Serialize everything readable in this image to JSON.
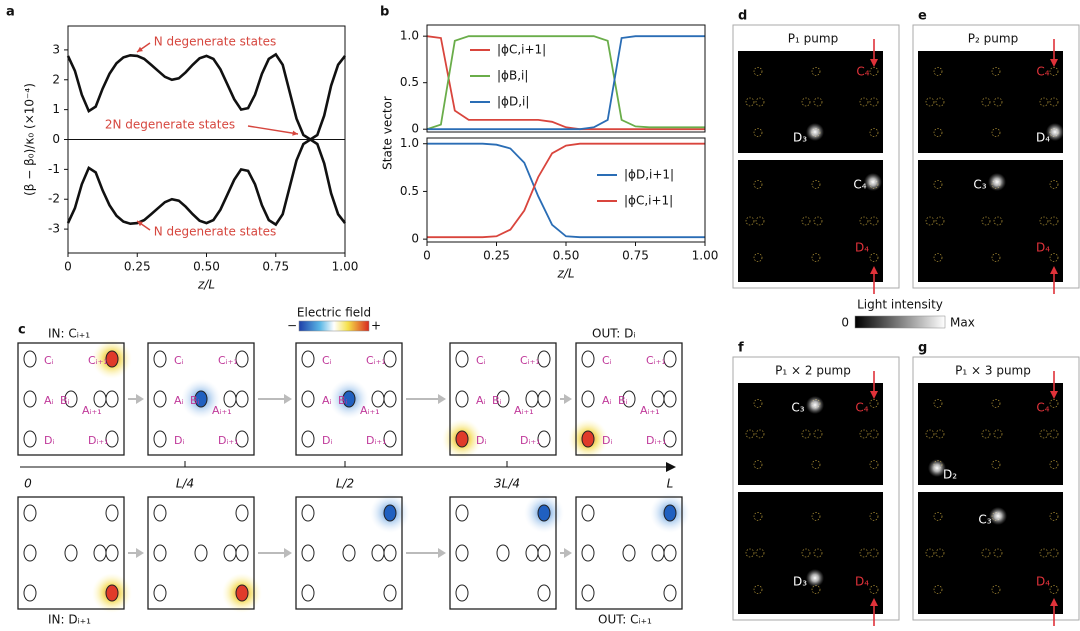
{
  "chart_data": [
    {
      "type": "line",
      "panel": "a",
      "x": [
        0,
        0.025,
        0.05,
        0.075,
        0.1,
        0.125,
        0.15,
        0.175,
        0.2,
        0.225,
        0.25,
        0.275,
        0.3,
        0.325,
        0.35,
        0.375,
        0.4,
        0.425,
        0.45,
        0.475,
        0.5,
        0.525,
        0.55,
        0.575,
        0.6,
        0.625,
        0.65,
        0.675,
        0.7,
        0.725,
        0.75,
        0.775,
        0.8,
        0.825,
        0.85,
        0.875,
        0.9,
        0.925,
        0.95,
        0.975,
        1
      ],
      "series": [
        {
          "color": "#111111",
          "values": [
            2.8,
            2.3,
            1.5,
            0.95,
            1.1,
            1.7,
            2.2,
            2.55,
            2.75,
            2.82,
            2.8,
            2.7,
            2.5,
            2.3,
            2.1,
            2.0,
            2.05,
            2.25,
            2.5,
            2.72,
            2.8,
            2.7,
            2.35,
            1.85,
            1.35,
            1.0,
            1.05,
            1.5,
            2.2,
            2.7,
            2.85,
            2.5,
            1.6,
            0.7,
            0.15,
            0,
            0.15,
            0.8,
            1.8,
            2.5,
            2.8
          ]
        },
        {
          "color": "#111111",
          "values": [
            -2.8,
            -2.3,
            -1.5,
            -0.95,
            -1.1,
            -1.7,
            -2.2,
            -2.55,
            -2.75,
            -2.82,
            -2.8,
            -2.7,
            -2.5,
            -2.3,
            -2.1,
            -2.0,
            -2.05,
            -2.25,
            -2.5,
            -2.72,
            -2.8,
            -2.7,
            -2.35,
            -1.85,
            -1.35,
            -1.0,
            -1.05,
            -1.5,
            -2.2,
            -2.7,
            -2.85,
            -2.5,
            -1.6,
            -0.7,
            -0.15,
            0,
            -0.15,
            -0.8,
            -1.8,
            -2.5,
            -2.8
          ]
        },
        {
          "color": "#111111",
          "values": [
            0,
            0,
            0,
            0,
            0,
            0,
            0,
            0,
            0,
            0,
            0,
            0,
            0,
            0,
            0,
            0,
            0,
            0,
            0,
            0,
            0,
            0,
            0,
            0,
            0,
            0,
            0,
            0,
            0,
            0,
            0,
            0,
            0,
            0,
            0,
            0,
            0,
            0,
            0,
            0,
            0
          ]
        }
      ],
      "xlim": [
        0,
        1
      ],
      "xticks": [
        0,
        0.25,
        {
          "value": 0.5,
          "label": "0.50"
        },
        0.75,
        {
          "value": 1,
          "label": "1.00"
        }
      ],
      "ylim": [
        -3.8,
        3.8
      ],
      "yticks": [
        -3,
        -2,
        -1,
        0,
        1,
        2,
        3
      ],
      "xlabel": "z/L",
      "ylabel": "(β − β₀)/κ₀ (×10⁻⁴)",
      "annotations": [
        "N degenerate states",
        "2N degenerate states",
        "N degenerate states"
      ]
    },
    {
      "type": "line",
      "panel": "b",
      "x": [
        0,
        0.05,
        0.1,
        0.15,
        0.2,
        0.25,
        0.3,
        0.35,
        0.4,
        0.45,
        0.5,
        0.55,
        0.6,
        0.65,
        0.7,
        0.75,
        0.8,
        0.85,
        0.9,
        0.95,
        1
      ],
      "series": [
        {
          "name": "|ϕC,i+1|",
          "color": "#d9453d",
          "values": [
            1,
            0.98,
            0.2,
            0.1,
            0.1,
            0.1,
            0.1,
            0.1,
            0.1,
            0.08,
            0.02,
            0,
            0,
            0,
            0,
            0,
            0,
            0,
            0,
            0,
            0
          ]
        },
        {
          "name": "|ϕB,i|",
          "color": "#6aad4a",
          "values": [
            0,
            0.05,
            0.95,
            1,
            1,
            1,
            1,
            1,
            1,
            1,
            1,
            1,
            1,
            0.95,
            0.1,
            0.03,
            0.02,
            0.02,
            0.02,
            0.02,
            0.02
          ]
        },
        {
          "name": "|ϕD,i|",
          "color": "#2a6db5",
          "values": [
            0,
            0,
            0,
            0,
            0,
            0,
            0,
            0,
            0,
            0,
            0,
            0,
            0.02,
            0.1,
            0.98,
            1,
            1,
            1,
            1,
            1,
            1
          ]
        }
      ],
      "xlim": [
        0,
        1
      ],
      "ylim": [
        -0.03,
        1.12
      ],
      "yticks": [
        0,
        0.5,
        {
          "value": 1,
          "label": "1.0"
        }
      ],
      "ylabel": "State vector",
      "legend": "upper center"
    },
    {
      "type": "line",
      "x": [
        0,
        0.05,
        0.1,
        0.15,
        0.2,
        0.25,
        0.3,
        0.35,
        0.4,
        0.45,
        0.5,
        0.55,
        0.6,
        0.65,
        0.7,
        0.75,
        0.8,
        0.85,
        0.9,
        0.95,
        1
      ],
      "series": [
        {
          "name": "|ϕD,i+1|",
          "color": "#2a6db5",
          "values": [
            1,
            1,
            1,
            1,
            1,
            0.99,
            0.95,
            0.8,
            0.45,
            0.15,
            0.03,
            0.02,
            0.02,
            0.02,
            0.02,
            0.02,
            0.02,
            0.02,
            0.02,
            0.02,
            0.02
          ]
        },
        {
          "name": "|ϕC,i+1|",
          "color": "#d9453d",
          "values": [
            0.02,
            0.02,
            0.02,
            0.02,
            0.02,
            0.03,
            0.1,
            0.3,
            0.65,
            0.9,
            0.98,
            1,
            1,
            1,
            1,
            1,
            1,
            1,
            1,
            1,
            1
          ]
        }
      ],
      "xlim": [
        0,
        1
      ],
      "xticks": [
        0,
        0.25,
        {
          "value": 0.5,
          "label": "0.50"
        },
        0.75,
        {
          "value": 1,
          "label": "1.00"
        }
      ],
      "ylim": [
        -0.03,
        1.06
      ],
      "yticks": [
        0,
        0.5,
        {
          "value": 1,
          "label": "1.0"
        }
      ],
      "xlabel": "z/L",
      "legend": "center right"
    }
  ],
  "panel_c": {
    "letter": "c",
    "in_top": "IN: Cᵢ₊₁",
    "out_top": "OUT: Dᵢ",
    "in_bottom": "IN: Dᵢ₊₁",
    "out_bottom": "OUT: Cᵢ₊₁",
    "axis_labels": [
      "0",
      "L/4",
      "L/2",
      "3L/4",
      "L"
    ],
    "site_labels": [
      "Cᵢ",
      "Cᵢ₊₁",
      "Aᵢ",
      "Bᵢ",
      "Aᵢ₊₁",
      "Dᵢ",
      "Dᵢ₊₁"
    ],
    "colorbar": {
      "title": "Electric field",
      "min": "−",
      "max": "+"
    }
  },
  "panels_dg": [
    {
      "letter": "d",
      "title": "P₁ pump",
      "images": [
        [
          "C₄",
          "D₃"
        ],
        [
          "C₄",
          "D₄"
        ]
      ]
    },
    {
      "letter": "e",
      "title": "P₂ pump",
      "images": [
        [
          "C₄",
          "D₄"
        ],
        [
          "C₃",
          "D₄"
        ]
      ]
    },
    {
      "letter": "f",
      "title": "P₁ × 2 pump",
      "images": [
        [
          "C₃",
          "C₄"
        ],
        [
          "D₃",
          "D₄"
        ]
      ]
    },
    {
      "letter": "g",
      "title": "P₁ × 3 pump",
      "images": [
        [
          "C₄",
          "D₂"
        ],
        [
          "C₃",
          "D₄"
        ]
      ]
    }
  ],
  "light_colorbar": {
    "title": "Light intensity",
    "min": "0",
    "max": "Max"
  }
}
